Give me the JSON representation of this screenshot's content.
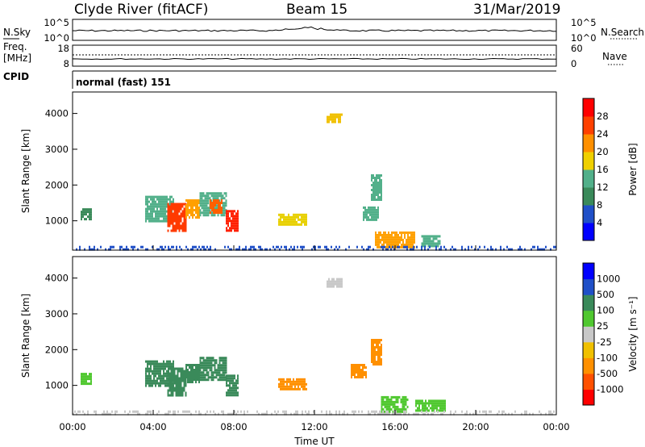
{
  "header": {
    "station": "Clyde River (fitACF)",
    "beam": "Beam 15",
    "date": "31/Mar/2019"
  },
  "strips": {
    "nsky_label": "N.Sky",
    "nsky_ticks": [
      "10^5",
      "10^0"
    ],
    "nsearch_label": "N.Search",
    "nsearch_ticks": [
      "10^5",
      "10^0"
    ],
    "freq_label": "Freq.",
    "freq_unit": "[MHz]",
    "freq_ticks": [
      "18",
      "8"
    ],
    "nave_label": "Nave",
    "nave_ticks": [
      "60",
      "0"
    ],
    "cpid_label": "CPID",
    "cpid_value": "normal (fast) 151"
  },
  "chart_data": [
    {
      "type": "heatmap",
      "panel": "power",
      "xlabel": "",
      "ylabel": "Slant Range [km]",
      "x_range_hours": [
        0,
        24
      ],
      "ylim": [
        180,
        4600
      ],
      "yticks": [
        "4000",
        "3000",
        "2000",
        "1000"
      ],
      "colorbar": {
        "label": "Power [dB]",
        "ticks": [
          "28",
          "24",
          "20",
          "16",
          "12",
          "8",
          "4"
        ],
        "colors": [
          "#0000ff",
          "#2050c8",
          "#3a8a5a",
          "#52b08a",
          "#f0d000",
          "#ff9000",
          "#ff4000",
          "#ff0000"
        ]
      },
      "regions": [
        {
          "t": [
            3.6,
            5.0
          ],
          "r": [
            1000,
            1700
          ],
          "color": "#52b08a"
        },
        {
          "t": [
            4.7,
            5.6
          ],
          "r": [
            750,
            1500
          ],
          "color": "#ff3a00"
        },
        {
          "t": [
            5.6,
            6.3
          ],
          "r": [
            1100,
            1600
          ],
          "color": "#ffa000"
        },
        {
          "t": [
            6.3,
            7.6
          ],
          "r": [
            1150,
            1800
          ],
          "color": "#52b08a"
        },
        {
          "t": [
            6.8,
            7.4
          ],
          "r": [
            1200,
            1600
          ],
          "color": "#ff6000"
        },
        {
          "t": [
            7.6,
            8.2
          ],
          "r": [
            700,
            1300
          ],
          "color": "#ff2000"
        },
        {
          "t": [
            0.4,
            0.9
          ],
          "r": [
            1050,
            1350
          ],
          "color": "#3a8a5a"
        },
        {
          "t": [
            10.2,
            11.6
          ],
          "r": [
            900,
            1200
          ],
          "color": "#e8d000"
        },
        {
          "t": [
            12.6,
            13.4
          ],
          "r": [
            3750,
            4000
          ],
          "color": "#f0c000"
        },
        {
          "t": [
            14.4,
            15.2
          ],
          "r": [
            1000,
            1400
          ],
          "color": "#52b08a"
        },
        {
          "t": [
            14.8,
            15.3
          ],
          "r": [
            1600,
            2300
          ],
          "color": "#52b08a"
        },
        {
          "t": [
            15.0,
            17.0
          ],
          "r": [
            250,
            700
          ],
          "color": "#ffa000"
        },
        {
          "t": [
            17.3,
            18.2
          ],
          "r": [
            300,
            600
          ],
          "color": "#52b08a"
        },
        {
          "t": [
            0.0,
            24.0
          ],
          "r": [
            180,
            300
          ],
          "color": "#2050c8"
        }
      ]
    },
    {
      "type": "heatmap",
      "panel": "velocity",
      "xlabel": "Time UT",
      "ylabel": "Slant Range [km]",
      "x_range_hours": [
        0,
        24
      ],
      "ylim": [
        180,
        4600
      ],
      "yticks": [
        "4000",
        "3000",
        "2000",
        "1000"
      ],
      "xticks": [
        "00:00",
        "04:00",
        "08:00",
        "12:00",
        "16:00",
        "20:00",
        "00:00"
      ],
      "colorbar": {
        "label": "Velocity [m s^-1]",
        "ticks": [
          "1000",
          "500",
          "100",
          "25",
          "-25",
          "-100",
          "-500",
          "-1000"
        ],
        "colors": [
          "#ff0000",
          "#ff5000",
          "#ff9000",
          "#f0c000",
          "#c8c8c8",
          "#50c830",
          "#3a8a5a",
          "#2050c8",
          "#0000ff"
        ]
      },
      "regions": [
        {
          "t": [
            3.6,
            5.0
          ],
          "r": [
            1000,
            1700
          ],
          "color": "#3a8a5a"
        },
        {
          "t": [
            4.7,
            5.6
          ],
          "r": [
            750,
            1500
          ],
          "color": "#3a8a5a"
        },
        {
          "t": [
            5.6,
            6.3
          ],
          "r": [
            1100,
            1600
          ],
          "color": "#3a8a5a"
        },
        {
          "t": [
            6.3,
            7.6
          ],
          "r": [
            1150,
            1800
          ],
          "color": "#3a8a5a"
        },
        {
          "t": [
            7.6,
            8.2
          ],
          "r": [
            700,
            1300
          ],
          "color": "#3a8a5a"
        },
        {
          "t": [
            0.4,
            0.9
          ],
          "r": [
            1050,
            1350
          ],
          "color": "#50c830"
        },
        {
          "t": [
            10.2,
            11.6
          ],
          "r": [
            900,
            1200
          ],
          "color": "#ff9000"
        },
        {
          "t": [
            12.6,
            13.4
          ],
          "r": [
            3750,
            4000
          ],
          "color": "#c8c8c8"
        },
        {
          "t": [
            13.8,
            14.6
          ],
          "r": [
            1200,
            1600
          ],
          "color": "#ff9000"
        },
        {
          "t": [
            14.8,
            15.3
          ],
          "r": [
            1600,
            2300
          ],
          "color": "#ff9000"
        },
        {
          "t": [
            15.3,
            16.6
          ],
          "r": [
            250,
            700
          ],
          "color": "#50c830"
        },
        {
          "t": [
            17.0,
            18.5
          ],
          "r": [
            280,
            600
          ],
          "color": "#50c830"
        },
        {
          "t": [
            0.0,
            24.0
          ],
          "r": [
            180,
            300
          ],
          "color": "#c8c8c8"
        }
      ]
    }
  ]
}
